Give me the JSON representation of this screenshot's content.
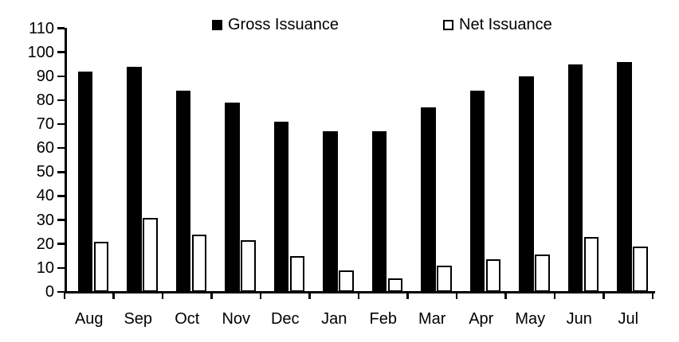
{
  "chart_data": {
    "type": "bar",
    "title": "",
    "xlabel": "",
    "ylabel": "",
    "categories": [
      "Aug",
      "Sep",
      "Oct",
      "Nov",
      "Dec",
      "Jan",
      "Feb",
      "Mar",
      "Apr",
      "May",
      "Jun",
      "Jul"
    ],
    "series": [
      {
        "name": "Gross Issuance",
        "fill": "#000000",
        "border": "#000000",
        "values": [
          92,
          94,
          84,
          79,
          71,
          67,
          67,
          77,
          84,
          90,
          95,
          96
        ]
      },
      {
        "name": "Net Issuance",
        "fill": "#ffffff",
        "border": "#000000",
        "values": [
          21,
          31,
          24,
          21.5,
          15,
          9,
          5.5,
          11,
          13.5,
          15.5,
          23,
          19
        ]
      }
    ],
    "ylim": [
      0,
      110
    ],
    "yticks": [
      0,
      10,
      20,
      30,
      40,
      50,
      60,
      70,
      80,
      90,
      100,
      110
    ],
    "grid": false,
    "legend_position": "top",
    "background_color": "#ffffff",
    "axis_color": "#000000"
  }
}
